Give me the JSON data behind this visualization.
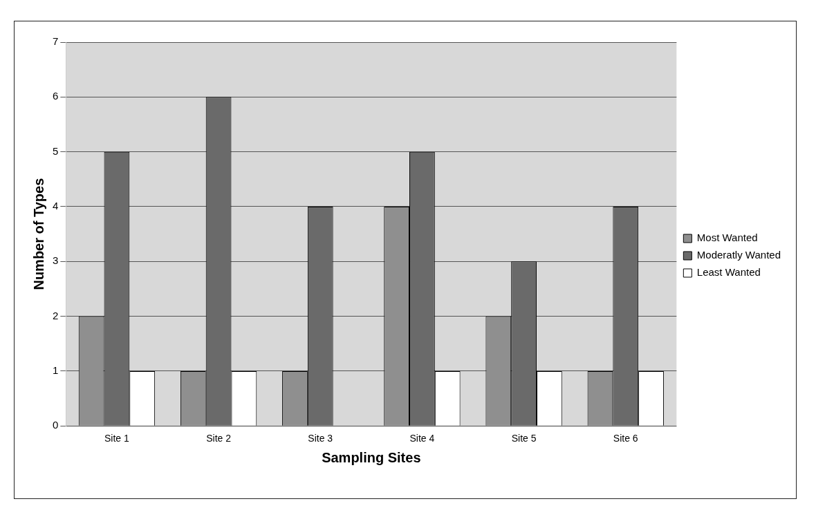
{
  "chart_data": {
    "type": "bar",
    "xlabel": "Sampling Sites",
    "ylabel": "Number of Types",
    "categories": [
      "Site 1",
      "Site 2",
      "Site 3",
      "Site 4",
      "Site 5",
      "Site 6"
    ],
    "series": [
      {
        "name": "Most Wanted",
        "color": "#8f8f8f",
        "values": [
          2,
          1,
          1,
          4,
          2,
          1
        ]
      },
      {
        "name": "Moderatly Wanted",
        "color": "#6a6a6a",
        "values": [
          5,
          6,
          4,
          5,
          3,
          4
        ]
      },
      {
        "name": "Least Wanted",
        "color": "#ffffff",
        "values": [
          1,
          1,
          0,
          1,
          1,
          1
        ]
      }
    ],
    "ylim": [
      0,
      7
    ],
    "yticks": [
      0,
      1,
      2,
      3,
      4,
      5,
      6,
      7
    ],
    "grid": "y",
    "legend": "right"
  }
}
